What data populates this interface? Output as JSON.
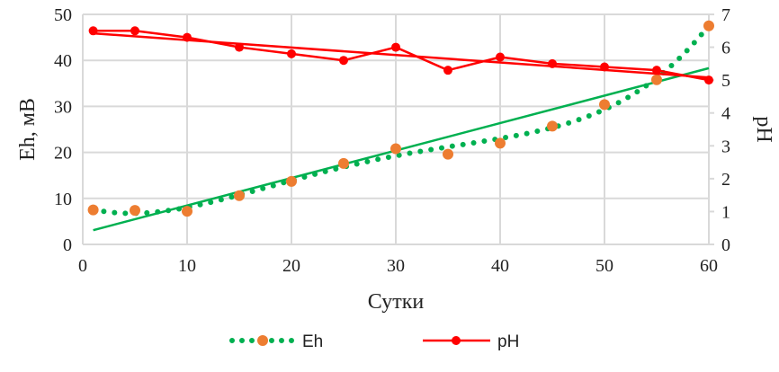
{
  "chart_data": {
    "type": "scatter",
    "xlabel": "Сутки",
    "ylabel": "Eh, мВ",
    "y2label": "pH",
    "xlim": [
      0,
      60
    ],
    "xticks": [
      0,
      10,
      20,
      30,
      40,
      50,
      60
    ],
    "ylim": [
      0,
      50
    ],
    "yticks": [
      0,
      10,
      20,
      30,
      40,
      50
    ],
    "y2lim": [
      0,
      7
    ],
    "y2ticks": [
      0,
      1,
      2,
      3,
      4,
      5,
      6,
      7
    ],
    "grid": true,
    "legend": "bottom",
    "x": [
      1,
      5,
      10,
      15,
      20,
      25,
      30,
      35,
      40,
      45,
      50,
      55,
      60
    ],
    "series": [
      {
        "name": "Eh",
        "axis": "left",
        "style": "markers",
        "color": "#ed7d31",
        "values": [
          7.5,
          7.4,
          7.2,
          10.6,
          13.7,
          17.6,
          20.8,
          19.6,
          22.0,
          25.7,
          30.4,
          35.8,
          47.5
        ],
        "trendlines": [
          {
            "type": "polynomial",
            "color": "#00b050",
            "style": "dotted"
          },
          {
            "type": "linear",
            "color": "#00b050",
            "style": "solid"
          }
        ]
      },
      {
        "name": "pH",
        "axis": "right",
        "style": "line-markers",
        "color": "#ff0000",
        "values": [
          6.5,
          6.5,
          6.3,
          6.0,
          5.8,
          5.6,
          6.0,
          5.3,
          5.7,
          5.5,
          5.4,
          5.3,
          5.0
        ],
        "trendlines": [
          {
            "type": "linear",
            "color": "#ff0000",
            "style": "solid"
          }
        ]
      }
    ]
  }
}
